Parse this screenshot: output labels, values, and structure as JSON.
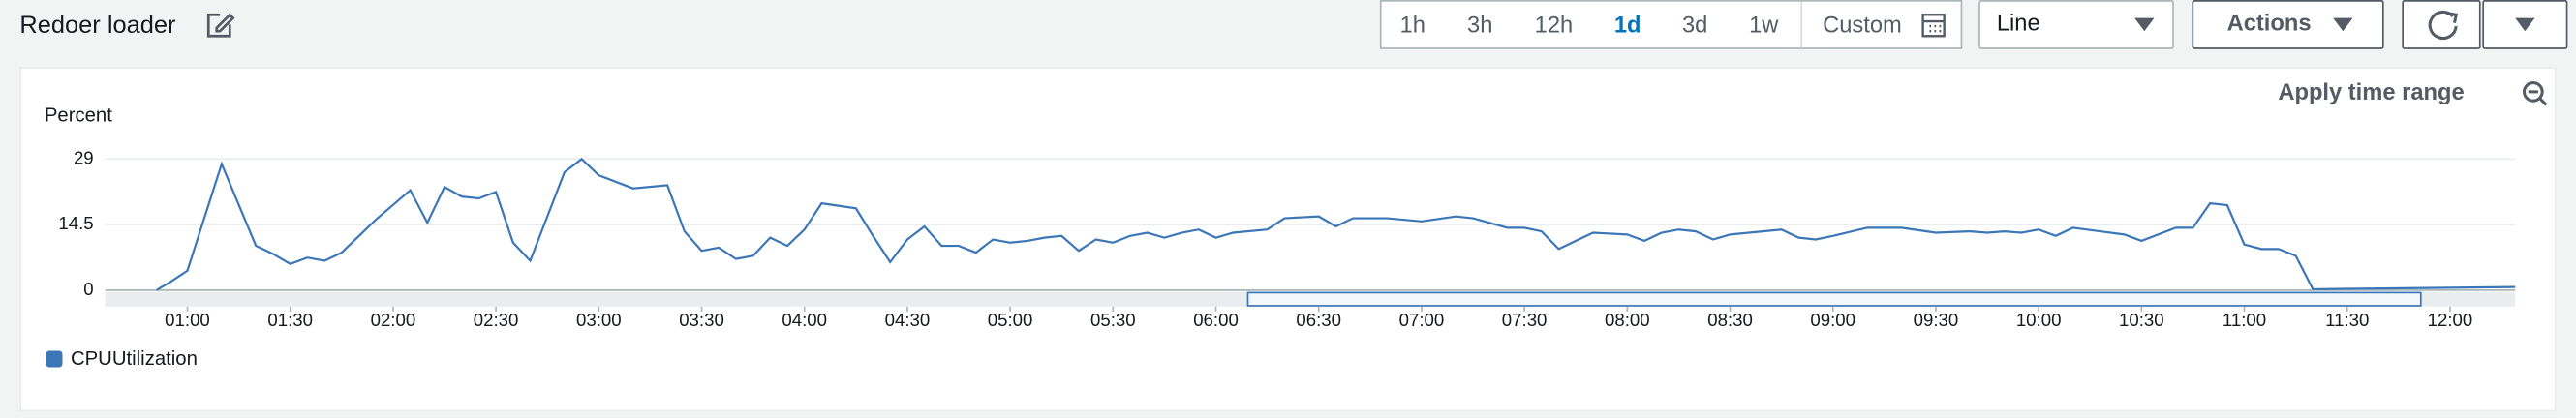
{
  "header": {
    "title": "Redoer loader"
  },
  "toolbar": {
    "time_ranges": [
      "1h",
      "3h",
      "12h",
      "1d",
      "3d",
      "1w",
      "Custom"
    ],
    "selected": "1d",
    "view_select": "Line",
    "actions": "Actions"
  },
  "apply_time_range": "Apply time range",
  "chart_data": {
    "type": "line",
    "y_label": "Percent",
    "x": [
      "00:51",
      "00:55",
      "01:00",
      "01:10",
      "01:20",
      "01:25",
      "01:30",
      "01:35",
      "01:40",
      "01:45",
      "01:55",
      "02:05",
      "02:10",
      "02:15",
      "02:20",
      "02:25",
      "02:30",
      "02:35",
      "02:40",
      "02:50",
      "02:55",
      "03:00",
      "03:10",
      "03:20",
      "03:25",
      "03:30",
      "03:35",
      "03:40",
      "03:45",
      "03:50",
      "03:55",
      "04:00",
      "04:05",
      "04:15",
      "04:20",
      "04:25",
      "04:30",
      "04:35",
      "04:40",
      "04:45",
      "04:50",
      "04:55",
      "05:00",
      "05:05",
      "05:10",
      "05:15",
      "05:20",
      "05:25",
      "05:30",
      "05:35",
      "05:40",
      "05:45",
      "05:50",
      "05:55",
      "06:00",
      "06:05",
      "06:15",
      "06:20",
      "06:30",
      "06:35",
      "06:40",
      "06:50",
      "07:00",
      "07:10",
      "07:15",
      "07:25",
      "07:30",
      "07:35",
      "07:40",
      "07:45",
      "07:50",
      "08:00",
      "08:05",
      "08:10",
      "08:15",
      "08:20",
      "08:25",
      "08:30",
      "08:45",
      "08:50",
      "08:55",
      "09:00",
      "09:10",
      "09:20",
      "09:30",
      "09:40",
      "09:45",
      "09:50",
      "09:55",
      "10:00",
      "10:05",
      "10:10",
      "10:25",
      "10:30",
      "10:40",
      "10:45",
      "10:50",
      "10:55",
      "11:00",
      "11:05",
      "11:10",
      "11:15",
      "11:20",
      "12:19"
    ],
    "series": [
      {
        "name": "CPUUtilization",
        "color": "#3b77b7",
        "values": [
          0,
          1.8,
          4.3,
          27.9,
          9.8,
          8,
          5.8,
          7.2,
          6.5,
          8.3,
          15.6,
          22.1,
          14.9,
          22.8,
          20.7,
          20.3,
          21.7,
          10.5,
          6.5,
          26.1,
          29,
          25.4,
          22.5,
          23.2,
          13,
          8.7,
          9.4,
          6.9,
          7.6,
          11.6,
          9.8,
          13.4,
          19.2,
          18.1,
          12,
          6.2,
          11.2,
          14.1,
          9.8,
          9.8,
          8.3,
          11.2,
          10.5,
          10.9,
          11.6,
          12,
          8.7,
          11.2,
          10.5,
          12,
          12.7,
          11.6,
          12.7,
          13.4,
          11.6,
          12.7,
          13.4,
          15.9,
          16.3,
          14.1,
          15.9,
          15.9,
          15.2,
          16.3,
          15.9,
          13.8,
          13.8,
          13,
          9.1,
          10.9,
          12.7,
          12.3,
          10.9,
          12.7,
          13.4,
          13,
          11.2,
          12.3,
          13.4,
          11.6,
          11.2,
          12,
          13.8,
          13.8,
          12.7,
          13,
          12.7,
          13,
          12.7,
          13.4,
          12,
          13.8,
          12.3,
          10.9,
          13.8,
          13.8,
          19.2,
          18.8,
          10.1,
          9.1,
          9.1,
          7.6,
          0.2,
          0.7
        ]
      }
    ],
    "xlim": [
      "00:36",
      "12:19"
    ],
    "xticks": [
      "01:00",
      "01:30",
      "02:00",
      "02:30",
      "03:00",
      "03:30",
      "04:00",
      "04:30",
      "05:00",
      "05:30",
      "06:00",
      "06:30",
      "07:00",
      "07:30",
      "08:00",
      "08:30",
      "09:00",
      "09:30",
      "10:00",
      "10:30",
      "11:00",
      "11:30",
      "12:00"
    ],
    "ylim": [
      0,
      29
    ],
    "yticks": [
      0,
      14.5,
      29
    ],
    "grid": true
  }
}
